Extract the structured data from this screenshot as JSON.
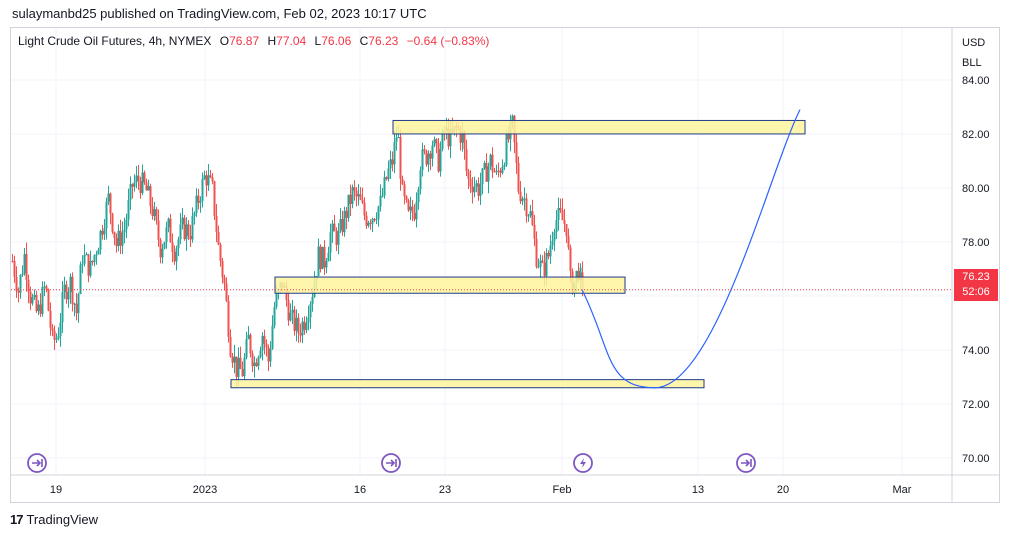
{
  "header": {
    "publisher_line": "sulaymanbd25 published on TradingView.com, Feb 02, 2023 10:17 UTC"
  },
  "legend": {
    "instrument": "Light Crude Oil Futures, 4h, NYMEX",
    "open_label": "O",
    "open": "76.87",
    "high_label": "H",
    "high": "77.04",
    "low_label": "L",
    "low": "76.06",
    "close_label": "C",
    "close": "76.23",
    "change": "−0.64 (−0.83%)"
  },
  "scale": {
    "currency": "USD",
    "unit": "BLL"
  },
  "last_price": {
    "price": "76.23",
    "countdown": "52:06",
    "color": "#f23645"
  },
  "footer": {
    "brand": "TradingView"
  },
  "colors": {
    "up": "#26a69a",
    "down": "#ef5350",
    "zone_fill": "#fff59d",
    "zone_border": "#1e3a8a",
    "projection": "#2962ff",
    "event": "#7e57c2"
  },
  "chart_data": {
    "type": "candlestick",
    "timeframe": "4h",
    "y_axis": {
      "ticks": [
        70,
        72,
        74,
        76,
        78,
        80,
        82,
        84
      ],
      "ylim": [
        68.6,
        85.8
      ]
    },
    "x_axis": {
      "tick_labels": [
        "19",
        "2023",
        "16",
        "23",
        "Feb",
        "13",
        "20",
        "Mar"
      ]
    },
    "price_path": [
      [
        0,
        77.3
      ],
      [
        6,
        76.2
      ],
      [
        12,
        77.5
      ],
      [
        18,
        76.0
      ],
      [
        25,
        75.3
      ],
      [
        33,
        76.4
      ],
      [
        40,
        74.3
      ],
      [
        45,
        74.5
      ],
      [
        52,
        76.2
      ],
      [
        58,
        76.5
      ],
      [
        64,
        75.4
      ],
      [
        70,
        77.5
      ],
      [
        78,
        77.0
      ],
      [
        88,
        78.3
      ],
      [
        96,
        79.6
      ],
      [
        104,
        77.9
      ],
      [
        112,
        78.5
      ],
      [
        120,
        80.1
      ],
      [
        126,
        80.3
      ],
      [
        133,
        80.0
      ],
      [
        140,
        79.2
      ],
      [
        148,
        77.8
      ],
      [
        156,
        78.5
      ],
      [
        162,
        77.7
      ],
      [
        170,
        78.5
      ],
      [
        178,
        78.4
      ],
      [
        186,
        79.6
      ],
      [
        193,
        80.5
      ],
      [
        200,
        79.9
      ],
      [
        206,
        77.8
      ],
      [
        212,
        76.4
      ],
      [
        218,
        74.2
      ],
      [
        224,
        73.3
      ],
      [
        230,
        73.2
      ],
      [
        236,
        74.4
      ],
      [
        242,
        73.5
      ],
      [
        250,
        74.6
      ],
      [
        256,
        73.6
      ],
      [
        262,
        75.6
      ],
      [
        270,
        76.5
      ],
      [
        278,
        75.2
      ],
      [
        286,
        74.7
      ],
      [
        292,
        75.1
      ],
      [
        300,
        76.2
      ],
      [
        306,
        77.5
      ],
      [
        312,
        77.3
      ],
      [
        318,
        78.3
      ],
      [
        326,
        78.2
      ],
      [
        333,
        79.0
      ],
      [
        340,
        79.8
      ],
      [
        347,
        79.5
      ],
      [
        353,
        78.9
      ],
      [
        360,
        79.0
      ],
      [
        368,
        79.4
      ],
      [
        375,
        80.5
      ],
      [
        380,
        81.0
      ],
      [
        385,
        82.2
      ],
      [
        390,
        79.7
      ],
      [
        396,
        78.9
      ],
      [
        402,
        79.2
      ],
      [
        408,
        81.0
      ],
      [
        414,
        81.2
      ],
      [
        420,
        81.7
      ],
      [
        426,
        81.0
      ],
      [
        432,
        82.1
      ],
      [
        438,
        81.8
      ],
      [
        444,
        82.2
      ],
      [
        450,
        81.9
      ],
      [
        455,
        80.3
      ],
      [
        460,
        80.2
      ],
      [
        466,
        80.0
      ],
      [
        472,
        80.5
      ],
      [
        478,
        81.0
      ],
      [
        484,
        80.4
      ],
      [
        490,
        81.0
      ],
      [
        495,
        81.7
      ],
      [
        500,
        82.3
      ],
      [
        506,
        80.0
      ],
      [
        512,
        79.6
      ],
      [
        518,
        79.0
      ],
      [
        524,
        77.5
      ],
      [
        530,
        76.9
      ],
      [
        536,
        77.5
      ],
      [
        542,
        78.8
      ],
      [
        548,
        78.9
      ],
      [
        554,
        78.6
      ],
      [
        558,
        76.5
      ],
      [
        562,
        76.5
      ],
      [
        566,
        77.0
      ],
      [
        570,
        76.23
      ]
    ],
    "zones": [
      {
        "top": 82.5,
        "bottom": 82.0
      },
      {
        "top": 76.7,
        "bottom": 76.1
      },
      {
        "top": 72.9,
        "bottom": 72.6
      }
    ],
    "projection": {
      "start": 76.23,
      "trough": 72.6,
      "end": 82.9
    },
    "events": [
      "dividend-icon",
      "dividend-icon",
      "earnings-icon",
      "dividend-icon"
    ]
  }
}
